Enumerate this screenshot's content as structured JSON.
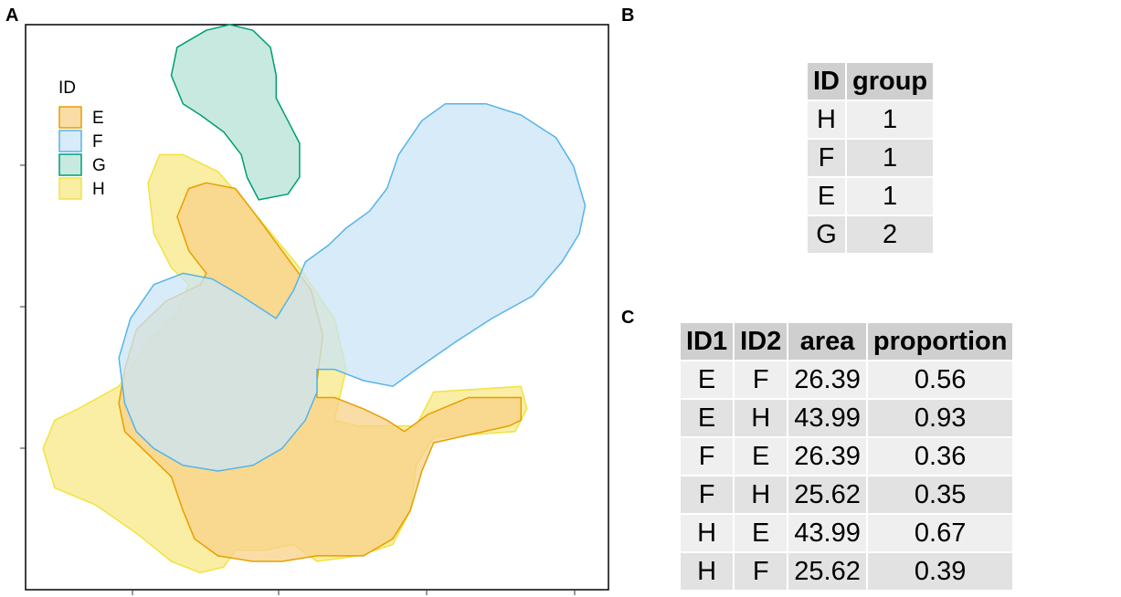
{
  "panels": {
    "a": "A",
    "b": "B",
    "c": "C"
  },
  "chart_data": {
    "type": "area",
    "title": "",
    "xlabel": "",
    "ylabel": "",
    "xlim": [
      0,
      1
    ],
    "ylim": [
      0,
      1
    ],
    "grid": false,
    "legend": {
      "title": "ID",
      "placement": "top-left",
      "entries": [
        "E",
        "F",
        "G",
        "H"
      ]
    },
    "series": [
      {
        "name": "H",
        "fill": "#F7E886",
        "stroke": "#F0E442",
        "points": [
          [
            0.3,
            0.03
          ],
          [
            0.25,
            0.05
          ],
          [
            0.19,
            0.1
          ],
          [
            0.12,
            0.15
          ],
          [
            0.05,
            0.18
          ],
          [
            0.03,
            0.25
          ],
          [
            0.05,
            0.3
          ],
          [
            0.09,
            0.32
          ],
          [
            0.16,
            0.36
          ],
          [
            0.21,
            0.44
          ],
          [
            0.26,
            0.49
          ],
          [
            0.28,
            0.54
          ],
          [
            0.25,
            0.57
          ],
          [
            0.22,
            0.63
          ],
          [
            0.21,
            0.72
          ],
          [
            0.23,
            0.77
          ],
          [
            0.27,
            0.77
          ],
          [
            0.33,
            0.74
          ],
          [
            0.39,
            0.67
          ],
          [
            0.47,
            0.57
          ],
          [
            0.53,
            0.48
          ],
          [
            0.55,
            0.39
          ],
          [
            0.53,
            0.3
          ],
          [
            0.57,
            0.29
          ],
          [
            0.67,
            0.29
          ],
          [
            0.7,
            0.35
          ],
          [
            0.85,
            0.36
          ],
          [
            0.86,
            0.32
          ],
          [
            0.84,
            0.28
          ],
          [
            0.7,
            0.27
          ],
          [
            0.67,
            0.22
          ],
          [
            0.66,
            0.14
          ],
          [
            0.63,
            0.08
          ],
          [
            0.57,
            0.06
          ],
          [
            0.5,
            0.05
          ],
          [
            0.46,
            0.08
          ],
          [
            0.41,
            0.07
          ],
          [
            0.36,
            0.07
          ],
          [
            0.34,
            0.04
          ],
          [
            0.3,
            0.03
          ]
        ]
      },
      {
        "name": "E",
        "fill": "#F8D288",
        "stroke": "#E69F00",
        "points": [
          [
            0.39,
            0.05
          ],
          [
            0.33,
            0.06
          ],
          [
            0.29,
            0.09
          ],
          [
            0.27,
            0.14
          ],
          [
            0.25,
            0.2
          ],
          [
            0.21,
            0.24
          ],
          [
            0.17,
            0.28
          ],
          [
            0.16,
            0.33
          ],
          [
            0.17,
            0.39
          ],
          [
            0.19,
            0.46
          ],
          [
            0.24,
            0.51
          ],
          [
            0.3,
            0.54
          ],
          [
            0.31,
            0.56
          ],
          [
            0.28,
            0.6
          ],
          [
            0.26,
            0.66
          ],
          [
            0.28,
            0.71
          ],
          [
            0.31,
            0.72
          ],
          [
            0.36,
            0.71
          ],
          [
            0.39,
            0.67
          ],
          [
            0.44,
            0.6
          ],
          [
            0.49,
            0.53
          ],
          [
            0.51,
            0.45
          ],
          [
            0.5,
            0.37
          ],
          [
            0.5,
            0.34
          ],
          [
            0.53,
            0.34
          ],
          [
            0.58,
            0.32
          ],
          [
            0.62,
            0.3
          ],
          [
            0.65,
            0.28
          ],
          [
            0.69,
            0.31
          ],
          [
            0.76,
            0.34
          ],
          [
            0.85,
            0.34
          ],
          [
            0.85,
            0.3
          ],
          [
            0.83,
            0.29
          ],
          [
            0.7,
            0.26
          ],
          [
            0.68,
            0.21
          ],
          [
            0.66,
            0.14
          ],
          [
            0.63,
            0.09
          ],
          [
            0.58,
            0.06
          ],
          [
            0.5,
            0.06
          ],
          [
            0.44,
            0.05
          ],
          [
            0.39,
            0.05
          ]
        ]
      },
      {
        "name": "F",
        "fill": "#C9E4F7",
        "stroke": "#56B4E9",
        "points": [
          [
            0.5,
            0.39
          ],
          [
            0.53,
            0.39
          ],
          [
            0.58,
            0.37
          ],
          [
            0.63,
            0.36
          ],
          [
            0.67,
            0.39
          ],
          [
            0.74,
            0.44
          ],
          [
            0.8,
            0.48
          ],
          [
            0.87,
            0.52
          ],
          [
            0.92,
            0.58
          ],
          [
            0.95,
            0.63
          ],
          [
            0.96,
            0.68
          ],
          [
            0.94,
            0.75
          ],
          [
            0.91,
            0.8
          ],
          [
            0.85,
            0.84
          ],
          [
            0.79,
            0.86
          ],
          [
            0.72,
            0.86
          ],
          [
            0.68,
            0.83
          ],
          [
            0.64,
            0.77
          ],
          [
            0.62,
            0.71
          ],
          [
            0.59,
            0.67
          ],
          [
            0.55,
            0.64
          ],
          [
            0.52,
            0.61
          ],
          [
            0.48,
            0.58
          ],
          [
            0.46,
            0.53
          ],
          [
            0.43,
            0.48
          ],
          [
            0.4,
            0.5
          ],
          [
            0.37,
            0.52
          ],
          [
            0.32,
            0.55
          ],
          [
            0.27,
            0.56
          ],
          [
            0.22,
            0.54
          ],
          [
            0.18,
            0.48
          ],
          [
            0.16,
            0.41
          ],
          [
            0.17,
            0.33
          ],
          [
            0.19,
            0.28
          ],
          [
            0.22,
            0.25
          ],
          [
            0.27,
            0.22
          ],
          [
            0.33,
            0.21
          ],
          [
            0.39,
            0.22
          ],
          [
            0.44,
            0.25
          ],
          [
            0.48,
            0.3
          ],
          [
            0.5,
            0.35
          ],
          [
            0.5,
            0.39
          ]
        ]
      },
      {
        "name": "G",
        "fill": "#B4E2D5",
        "stroke": "#009E73",
        "points": [
          [
            0.4,
            0.69
          ],
          [
            0.45,
            0.7
          ],
          [
            0.47,
            0.73
          ],
          [
            0.47,
            0.79
          ],
          [
            0.45,
            0.83
          ],
          [
            0.43,
            0.87
          ],
          [
            0.43,
            0.91
          ],
          [
            0.42,
            0.96
          ],
          [
            0.39,
            0.99
          ],
          [
            0.35,
            1.0
          ],
          [
            0.31,
            0.99
          ],
          [
            0.26,
            0.96
          ],
          [
            0.25,
            0.91
          ],
          [
            0.27,
            0.86
          ],
          [
            0.3,
            0.84
          ],
          [
            0.34,
            0.81
          ],
          [
            0.37,
            0.77
          ],
          [
            0.38,
            0.73
          ],
          [
            0.4,
            0.69
          ]
        ]
      }
    ]
  },
  "group_table": {
    "headers": [
      "ID",
      "group"
    ],
    "rows": [
      [
        "H",
        "1"
      ],
      [
        "F",
        "1"
      ],
      [
        "E",
        "1"
      ],
      [
        "G",
        "2"
      ]
    ]
  },
  "overlap_table": {
    "headers": [
      "ID1",
      "ID2",
      "area",
      "proportion"
    ],
    "rows": [
      [
        "E",
        "F",
        "26.39",
        "0.56"
      ],
      [
        "E",
        "H",
        "43.99",
        "0.93"
      ],
      [
        "F",
        "E",
        "26.39",
        "0.36"
      ],
      [
        "F",
        "H",
        "25.62",
        "0.35"
      ],
      [
        "H",
        "E",
        "43.99",
        "0.67"
      ],
      [
        "H",
        "F",
        "25.62",
        "0.39"
      ]
    ]
  }
}
